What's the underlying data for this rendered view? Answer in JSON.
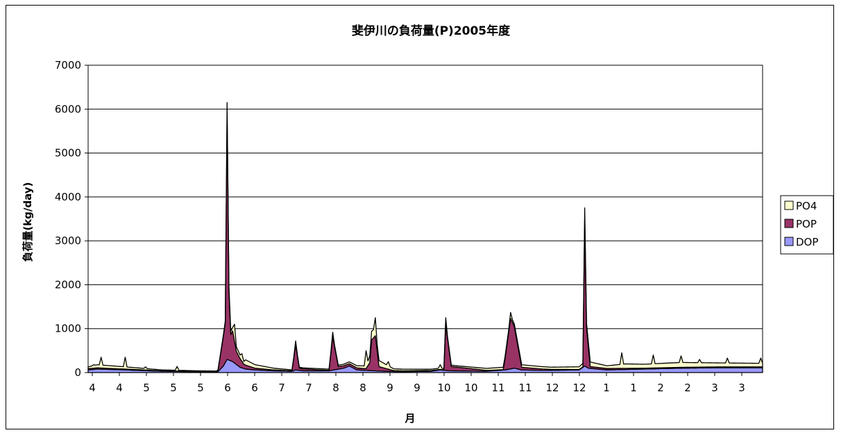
{
  "chart_data": {
    "type": "area",
    "stacked": true,
    "title": "斐伊川の負荷量(P)2005年度",
    "xlabel": "月",
    "ylabel": "負荷量(kg/day)",
    "ylim": [
      0,
      7000
    ],
    "yticks": [
      0,
      1000,
      2000,
      3000,
      4000,
      5000,
      6000,
      7000
    ],
    "xtick_labels": [
      "4",
      "4",
      "5",
      "5",
      "5",
      "6",
      "6",
      "7",
      "7",
      "8",
      "8",
      "9",
      "9",
      "10",
      "10",
      "11",
      "11",
      "12",
      "12",
      "1",
      "1",
      "2",
      "2",
      "3",
      "3"
    ],
    "grid": "horizontal",
    "legend_position": "right",
    "days": 365,
    "series": [
      {
        "name": "DOP",
        "color": "#9999FF",
        "keypoints": [
          [
            0,
            60
          ],
          [
            5,
            80
          ],
          [
            20,
            60
          ],
          [
            40,
            30
          ],
          [
            60,
            20
          ],
          [
            70,
            20
          ],
          [
            73,
            150
          ],
          [
            75,
            300
          ],
          [
            78,
            250
          ],
          [
            82,
            120
          ],
          [
            85,
            80
          ],
          [
            90,
            60
          ],
          [
            95,
            50
          ],
          [
            100,
            40
          ],
          [
            110,
            30
          ],
          [
            112,
            60
          ],
          [
            116,
            40
          ],
          [
            130,
            40
          ],
          [
            138,
            100
          ],
          [
            141,
            150
          ],
          [
            145,
            60
          ],
          [
            160,
            30
          ],
          [
            170,
            20
          ],
          [
            185,
            30
          ],
          [
            190,
            60
          ],
          [
            195,
            40
          ],
          [
            215,
            30
          ],
          [
            225,
            60
          ],
          [
            230,
            100
          ],
          [
            234,
            60
          ],
          [
            245,
            50
          ],
          [
            265,
            60
          ],
          [
            268,
            150
          ],
          [
            270,
            100
          ],
          [
            280,
            60
          ],
          [
            300,
            80
          ],
          [
            320,
            100
          ],
          [
            340,
            110
          ],
          [
            364,
            110
          ]
        ]
      },
      {
        "name": "POP",
        "color": "#993366",
        "keypoints": [
          [
            0,
            30
          ],
          [
            20,
            20
          ],
          [
            40,
            10
          ],
          [
            60,
            10
          ],
          [
            70,
            5
          ],
          [
            74,
            900
          ],
          [
            75,
            5700
          ],
          [
            76,
            1600
          ],
          [
            77,
            600
          ],
          [
            78,
            700
          ],
          [
            80,
            300
          ],
          [
            84,
            100
          ],
          [
            90,
            40
          ],
          [
            100,
            20
          ],
          [
            110,
            10
          ],
          [
            112,
            580
          ],
          [
            114,
            50
          ],
          [
            130,
            10
          ],
          [
            132,
            770
          ],
          [
            135,
            60
          ],
          [
            150,
            40
          ],
          [
            152,
            180
          ],
          [
            153,
            700
          ],
          [
            155,
            800
          ],
          [
            157,
            100
          ],
          [
            165,
            20
          ],
          [
            180,
            20
          ],
          [
            192,
            10
          ],
          [
            193,
            1050
          ],
          [
            196,
            100
          ],
          [
            215,
            20
          ],
          [
            224,
            10
          ],
          [
            225,
            250
          ],
          [
            228,
            1150
          ],
          [
            230,
            950
          ],
          [
            234,
            60
          ],
          [
            250,
            20
          ],
          [
            267,
            10
          ],
          [
            268,
            3400
          ],
          [
            269,
            900
          ],
          [
            271,
            40
          ],
          [
            300,
            20
          ],
          [
            364,
            20
          ]
        ]
      },
      {
        "name": "PO4",
        "color": "#FFFFCC",
        "keypoints": [
          [
            0,
            40
          ],
          [
            5,
            70
          ],
          [
            20,
            50
          ],
          [
            40,
            20
          ],
          [
            60,
            10
          ],
          [
            70,
            10
          ],
          [
            75,
            50
          ],
          [
            80,
            100
          ],
          [
            84,
            60
          ],
          [
            85,
            120
          ],
          [
            90,
            80
          ],
          [
            95,
            60
          ],
          [
            100,
            40
          ],
          [
            110,
            20
          ],
          [
            135,
            30
          ],
          [
            150,
            60
          ],
          [
            153,
            200
          ],
          [
            156,
            150
          ],
          [
            165,
            40
          ],
          [
            180,
            30
          ],
          [
            200,
            30
          ],
          [
            230,
            60
          ],
          [
            250,
            50
          ],
          [
            265,
            60
          ],
          [
            270,
            110
          ],
          [
            280,
            60
          ],
          [
            290,
            100
          ],
          [
            300,
            90
          ],
          [
            320,
            110
          ],
          [
            340,
            90
          ],
          [
            364,
            80
          ]
        ]
      }
    ],
    "total_spikes": [
      [
        3,
        180
      ],
      [
        7,
        350
      ],
      [
        20,
        350
      ],
      [
        31,
        130
      ],
      [
        48,
        140
      ],
      [
        70,
        50
      ],
      [
        73,
        350
      ],
      [
        75,
        6150
      ],
      [
        76,
        1600
      ],
      [
        79,
        1100
      ],
      [
        83,
        430
      ],
      [
        112,
        720
      ],
      [
        132,
        920
      ],
      [
        150,
        500
      ],
      [
        155,
        1250
      ],
      [
        162,
        250
      ],
      [
        190,
        180
      ],
      [
        193,
        1250
      ],
      [
        225,
        350
      ],
      [
        228,
        1370
      ],
      [
        268,
        3750
      ],
      [
        288,
        450
      ],
      [
        305,
        400
      ],
      [
        320,
        380
      ],
      [
        330,
        300
      ],
      [
        345,
        330
      ],
      [
        363,
        330
      ]
    ]
  }
}
